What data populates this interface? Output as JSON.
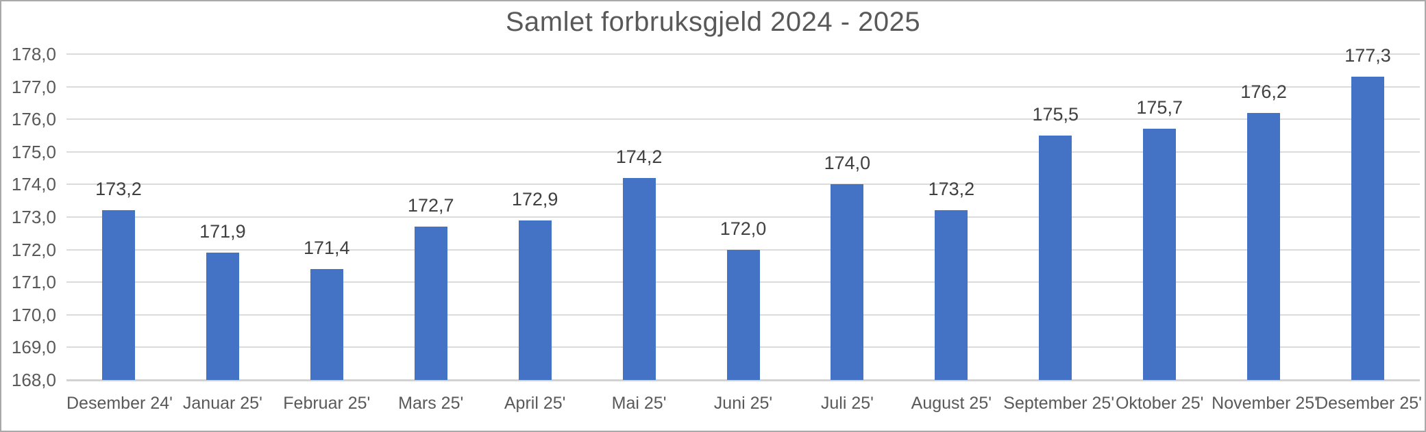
{
  "chart_data": {
    "type": "bar",
    "title": "Samlet forbruksgjeld 2024 - 2025",
    "categories": [
      "Desember 24'",
      "Januar 25'",
      "Februar 25'",
      "Mars 25'",
      "April 25'",
      "Mai 25'",
      "Juni 25'",
      "Juli 25'",
      "August 25'",
      "September 25'",
      "Oktober 25'",
      "November 25'",
      "Desember 25'"
    ],
    "values": [
      173.2,
      171.9,
      171.4,
      172.7,
      172.9,
      174.2,
      172.0,
      174.0,
      173.2,
      175.5,
      175.7,
      176.2,
      177.3
    ],
    "data_labels": [
      "173,2",
      "171,9",
      "171,4",
      "172,7",
      "172,9",
      "174,2",
      "172,0",
      "174,0",
      "173,2",
      "175,5",
      "175,7",
      "176,2",
      "177,3"
    ],
    "xlabel": "",
    "ylabel": "",
    "ylim": [
      168.0,
      178.0
    ],
    "y_tick_step": 1.0,
    "y_tick_labels": [
      "168,0",
      "169,0",
      "170,0",
      "171,0",
      "172,0",
      "173,0",
      "174,0",
      "175,0",
      "176,0",
      "177,0",
      "178,0"
    ],
    "grid": true,
    "legend": "none",
    "colors": {
      "bar": "#4472C4",
      "gridline": "#DBDBDB",
      "axis_line": "#D2D2D2",
      "title_text": "#595959",
      "axis_text": "#595959",
      "data_label_text": "#404040",
      "frame_border": "#A9A9A9",
      "background": "#FFFFFF"
    }
  }
}
